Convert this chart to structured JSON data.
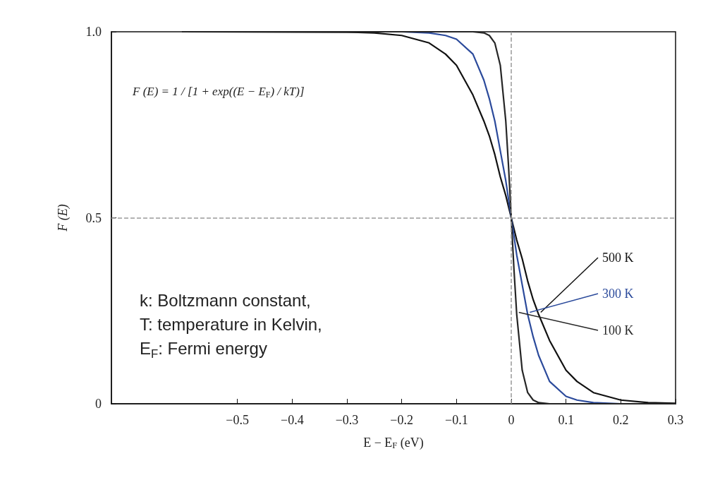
{
  "chart_data": {
    "type": "line",
    "xlabel": "E − E$_{F}$ (eV)",
    "ylabel": "F (E)",
    "x": [
      -0.6,
      -0.3,
      -0.25,
      -0.2,
      -0.15,
      -0.12,
      -0.1,
      -0.07,
      -0.05,
      -0.04,
      -0.03,
      -0.02,
      -0.01,
      -0.005,
      0,
      0.005,
      0.01,
      0.02,
      0.03,
      0.04,
      0.05,
      0.07,
      0.1,
      0.12,
      0.15,
      0.2,
      0.25,
      0.3
    ],
    "series": [
      {
        "name": "500 K",
        "color": "#111111",
        "values": [
          1,
          0.999,
          0.997,
          0.99,
          0.97,
          0.94,
          0.91,
          0.83,
          0.76,
          0.72,
          0.67,
          0.61,
          0.56,
          0.53,
          0.5,
          0.47,
          0.44,
          0.39,
          0.33,
          0.28,
          0.24,
          0.17,
          0.09,
          0.06,
          0.03,
          0.01,
          0.003,
          0.001
        ]
      },
      {
        "name": "300 K",
        "color": "#2b4a9b",
        "values": [
          null,
          null,
          1,
          1,
          0.997,
          0.99,
          0.98,
          0.94,
          0.87,
          0.82,
          0.76,
          0.68,
          0.6,
          0.55,
          0.5,
          0.45,
          0.4,
          0.32,
          0.24,
          0.18,
          0.13,
          0.06,
          0.02,
          0.01,
          0.003,
          0,
          0,
          0
        ]
      },
      {
        "name": "100 K",
        "color": "#262626",
        "values": [
          1,
          1,
          1,
          1,
          1,
          1,
          1,
          1,
          0.997,
          0.99,
          0.97,
          0.91,
          0.76,
          0.64,
          0.5,
          0.36,
          0.24,
          0.09,
          0.03,
          0.01,
          0.003,
          0,
          0,
          0,
          0,
          0,
          0,
          0
        ]
      }
    ],
    "xlim": [
      -0.73,
      0.3
    ],
    "xticks": [
      -0.5,
      -0.4,
      -0.3,
      -0.2,
      -0.1,
      0,
      0.1,
      0.2,
      0.3
    ],
    "ylim": [
      0,
      1
    ],
    "yticks": [
      0,
      0.5,
      {
        "value": 1,
        "label": "1.0"
      }
    ],
    "ref_lines": [
      {
        "axis": "x",
        "value": 0,
        "color": "#999999",
        "line_style": "dashed"
      },
      {
        "axis": "y",
        "value": 0.5,
        "color": "#999999",
        "line_style": "dashed"
      }
    ],
    "annotations": [
      "F (E) = 1 / [1 + exp((E − E$_{F}$) / kT)]",
      "k: Boltzmann constant,\nT: temperature in Kelvin,\nE$_{F}$: Fermi energy"
    ],
    "grid": false,
    "legend": false,
    "marker": "none",
    "line_style": "solid"
  }
}
